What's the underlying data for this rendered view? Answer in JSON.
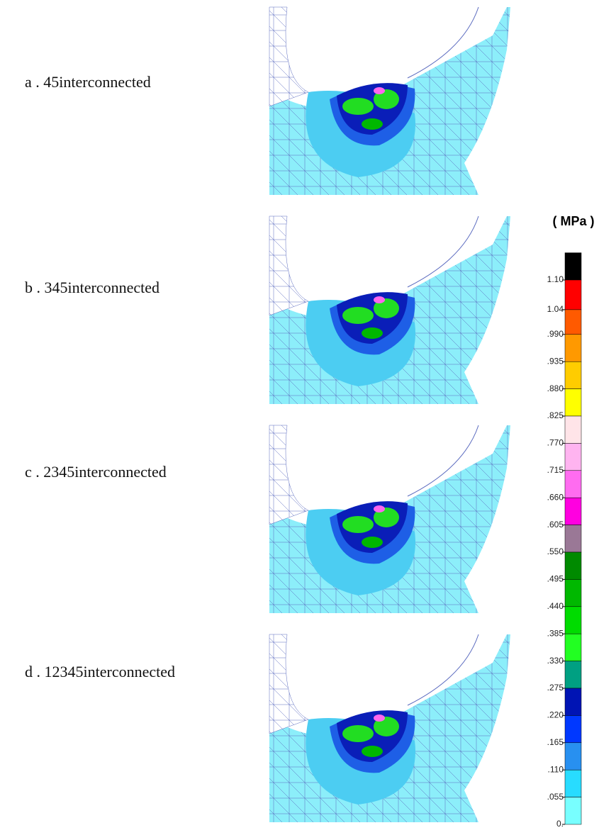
{
  "panels": [
    {
      "label": "a . 45interconnected"
    },
    {
      "label": "b . 345interconnected"
    },
    {
      "label": "c . 2345interconnected"
    },
    {
      "label": "d . 12345interconnected"
    }
  ],
  "legend": {
    "unit": "( MPa )",
    "ticks": [
      {
        "value": 1.1,
        "label": "1.10"
      },
      {
        "value": 1.04,
        "label": "1.04"
      },
      {
        "value": 0.99,
        "label": ".990"
      },
      {
        "value": 0.935,
        "label": ".935"
      },
      {
        "value": 0.88,
        "label": ".880"
      },
      {
        "value": 0.825,
        "label": ".825"
      },
      {
        "value": 0.77,
        "label": ".770"
      },
      {
        "value": 0.715,
        "label": ".715"
      },
      {
        "value": 0.66,
        "label": ".660"
      },
      {
        "value": 0.605,
        "label": ".605"
      },
      {
        "value": 0.55,
        "label": ".550"
      },
      {
        "value": 0.495,
        "label": ".495"
      },
      {
        "value": 0.44,
        "label": ".440"
      },
      {
        "value": 0.385,
        "label": ".385"
      },
      {
        "value": 0.33,
        "label": ".330"
      },
      {
        "value": 0.275,
        "label": ".275"
      },
      {
        "value": 0.22,
        "label": ".220"
      },
      {
        "value": 0.165,
        "label": ".165"
      },
      {
        "value": 0.11,
        "label": ".110"
      },
      {
        "value": 0.055,
        "label": ".055"
      },
      {
        "value": 0,
        "label": "0."
      }
    ],
    "colors": [
      "#000000",
      "#ff0000",
      "#ff5a00",
      "#ff9900",
      "#ffcc00",
      "#ffff00",
      "#ffe4e8",
      "#ffb4f0",
      "#ff6cf0",
      "#ff00e0",
      "#9a7896",
      "#008a00",
      "#00b800",
      "#00dc00",
      "#22ff22",
      "#00a082",
      "#0014b4",
      "#0038ff",
      "#2890f0",
      "#28dcff",
      "#78ffff",
      "#ffffff"
    ]
  }
}
